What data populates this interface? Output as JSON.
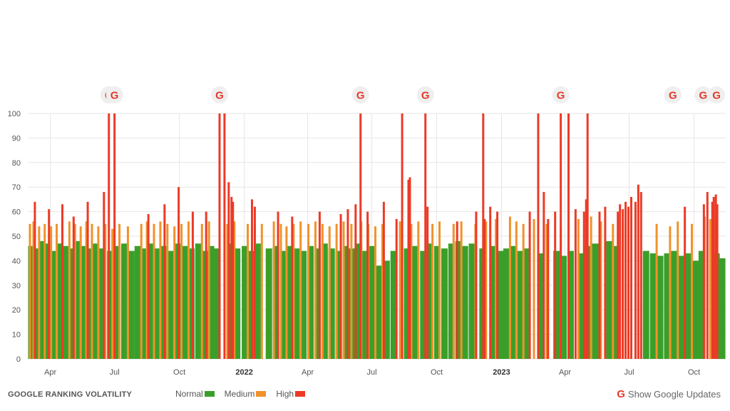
{
  "colors": {
    "normal": "#3a9f2a",
    "medium": "#f0922a",
    "high": "#ec3a26",
    "grid": "#e6e6e6"
  },
  "legend": {
    "title": "GOOGLE RANKING VOLATILITY",
    "normal": "Normal",
    "medium": "Medium",
    "high": "High"
  },
  "toggle": {
    "label": "Show Google Updates",
    "icon": "google-g-icon"
  },
  "chart_data": {
    "type": "bar",
    "title": "",
    "xlabel": "",
    "ylabel": "",
    "ylim": [
      0,
      100
    ],
    "yticks": [
      0,
      10,
      20,
      30,
      40,
      50,
      60,
      70,
      80,
      90,
      100
    ],
    "xlim": [
      "2021-03-01",
      "2023-11-15"
    ],
    "xticks": [
      {
        "date": "2021-04-01",
        "label": "Apr",
        "bold": false
      },
      {
        "date": "2021-07-01",
        "label": "Jul",
        "bold": false
      },
      {
        "date": "2021-10-01",
        "label": "Oct",
        "bold": false
      },
      {
        "date": "2022-01-01",
        "label": "2022",
        "bold": true
      },
      {
        "date": "2022-04-01",
        "label": "Apr",
        "bold": false
      },
      {
        "date": "2022-07-01",
        "label": "Jul",
        "bold": false
      },
      {
        "date": "2022-10-01",
        "label": "Oct",
        "bold": false
      },
      {
        "date": "2023-01-01",
        "label": "2023",
        "bold": true
      },
      {
        "date": "2023-04-01",
        "label": "Apr",
        "bold": false
      },
      {
        "date": "2023-07-01",
        "label": "Jul",
        "bold": false
      },
      {
        "date": "2023-10-01",
        "label": "Oct",
        "bold": false
      }
    ],
    "grid": true,
    "legend_position": "bottom",
    "level_categories": [
      "Normal",
      "Medium",
      "High"
    ],
    "series": [
      {
        "level": "normal",
        "points": [
          [
            "2021-03-05",
            46
          ],
          [
            "2021-03-12",
            45
          ],
          [
            "2021-03-20",
            48
          ],
          [
            "2021-03-28",
            47
          ],
          [
            "2021-04-05",
            44
          ],
          [
            "2021-04-15",
            47
          ],
          [
            "2021-04-22",
            46
          ],
          [
            "2021-05-01",
            45
          ],
          [
            "2021-05-10",
            48
          ],
          [
            "2021-05-18",
            46
          ],
          [
            "2021-05-26",
            45
          ],
          [
            "2021-06-05",
            47
          ],
          [
            "2021-06-14",
            45
          ],
          [
            "2021-06-25",
            44
          ],
          [
            "2021-07-05",
            46
          ],
          [
            "2021-07-15",
            47
          ],
          [
            "2021-07-25",
            44
          ],
          [
            "2021-08-03",
            46
          ],
          [
            "2021-08-12",
            45
          ],
          [
            "2021-08-20",
            47
          ],
          [
            "2021-08-30",
            45
          ],
          [
            "2021-09-08",
            46
          ],
          [
            "2021-09-18",
            44
          ],
          [
            "2021-09-28",
            47
          ],
          [
            "2021-10-08",
            46
          ],
          [
            "2021-10-18",
            45
          ],
          [
            "2021-10-28",
            47
          ],
          [
            "2021-11-06",
            44
          ],
          [
            "2021-11-15",
            46
          ],
          [
            "2021-11-24",
            45
          ],
          [
            "2021-12-12",
            47
          ],
          [
            "2021-12-22",
            45
          ],
          [
            "2022-01-02",
            46
          ],
          [
            "2022-01-10",
            44
          ],
          [
            "2022-01-20",
            47
          ],
          [
            "2022-02-05",
            45
          ],
          [
            "2022-02-15",
            46
          ],
          [
            "2022-02-25",
            44
          ],
          [
            "2022-03-06",
            46
          ],
          [
            "2022-03-16",
            45
          ],
          [
            "2022-03-26",
            44
          ],
          [
            "2022-04-05",
            46
          ],
          [
            "2022-04-15",
            45
          ],
          [
            "2022-04-25",
            47
          ],
          [
            "2022-05-05",
            45
          ],
          [
            "2022-05-15",
            44
          ],
          [
            "2022-05-25",
            46
          ],
          [
            "2022-06-03",
            45
          ],
          [
            "2022-06-13",
            47
          ],
          [
            "2022-06-22",
            44
          ],
          [
            "2022-07-02",
            46
          ],
          [
            "2022-07-12",
            38
          ],
          [
            "2022-07-22",
            40
          ],
          [
            "2022-08-01",
            44
          ],
          [
            "2022-08-20",
            45
          ],
          [
            "2022-09-01",
            46
          ],
          [
            "2022-09-12",
            44
          ],
          [
            "2022-09-22",
            47
          ],
          [
            "2022-10-02",
            46
          ],
          [
            "2022-10-12",
            45
          ],
          [
            "2022-10-22",
            47
          ],
          [
            "2022-11-01",
            48
          ],
          [
            "2022-11-10",
            46
          ],
          [
            "2022-11-20",
            47
          ],
          [
            "2022-12-05",
            45
          ],
          [
            "2022-12-20",
            46
          ],
          [
            "2022-12-30",
            44
          ],
          [
            "2023-01-08",
            45
          ],
          [
            "2023-01-18",
            46
          ],
          [
            "2023-01-28",
            44
          ],
          [
            "2023-02-06",
            45
          ],
          [
            "2023-02-25",
            43
          ],
          [
            "2023-03-20",
            44
          ],
          [
            "2023-03-30",
            42
          ],
          [
            "2023-04-09",
            44
          ],
          [
            "2023-04-25",
            43
          ],
          [
            "2023-05-04",
            46
          ],
          [
            "2023-05-14",
            47
          ],
          [
            "2023-06-03",
            48
          ],
          [
            "2023-06-12",
            46
          ],
          [
            "2023-07-25",
            44
          ],
          [
            "2023-08-04",
            43
          ],
          [
            "2023-08-14",
            42
          ],
          [
            "2023-08-24",
            43
          ],
          [
            "2023-09-03",
            44
          ],
          [
            "2023-09-13",
            42
          ],
          [
            "2023-09-23",
            43
          ],
          [
            "2023-10-03",
            40
          ],
          [
            "2023-10-12",
            44
          ],
          [
            "2023-11-02",
            43
          ],
          [
            "2023-11-10",
            41
          ]
        ]
      },
      {
        "level": "medium",
        "points": [
          [
            "2021-03-03",
            55
          ],
          [
            "2021-03-08",
            56
          ],
          [
            "2021-03-16",
            54
          ],
          [
            "2021-03-24",
            55
          ],
          [
            "2021-04-02",
            54
          ],
          [
            "2021-04-10",
            55
          ],
          [
            "2021-04-28",
            56
          ],
          [
            "2021-05-06",
            55
          ],
          [
            "2021-05-14",
            54
          ],
          [
            "2021-05-22",
            56
          ],
          [
            "2021-05-30",
            55
          ],
          [
            "2021-06-08",
            54
          ],
          [
            "2021-06-18",
            55
          ],
          [
            "2021-06-28",
            53
          ],
          [
            "2021-07-08",
            55
          ],
          [
            "2021-07-20",
            54
          ],
          [
            "2021-08-08",
            55
          ],
          [
            "2021-08-16",
            56
          ],
          [
            "2021-08-26",
            55
          ],
          [
            "2021-09-04",
            56
          ],
          [
            "2021-09-14",
            55
          ],
          [
            "2021-09-24",
            54
          ],
          [
            "2021-10-04",
            55
          ],
          [
            "2021-10-14",
            56
          ],
          [
            "2021-11-02",
            55
          ],
          [
            "2021-11-12",
            56
          ],
          [
            "2021-12-08",
            55
          ],
          [
            "2021-12-18",
            56
          ],
          [
            "2022-01-06",
            55
          ],
          [
            "2022-01-16",
            54
          ],
          [
            "2022-01-26",
            55
          ],
          [
            "2022-02-12",
            56
          ],
          [
            "2022-02-22",
            55
          ],
          [
            "2022-03-02",
            54
          ],
          [
            "2022-03-12",
            55
          ],
          [
            "2022-03-22",
            56
          ],
          [
            "2022-04-02",
            55
          ],
          [
            "2022-04-12",
            56
          ],
          [
            "2022-04-22",
            55
          ],
          [
            "2022-05-02",
            54
          ],
          [
            "2022-05-12",
            55
          ],
          [
            "2022-05-22",
            56
          ],
          [
            "2022-06-02",
            55
          ],
          [
            "2022-06-16",
            56
          ],
          [
            "2022-06-26",
            55
          ],
          [
            "2022-07-06",
            54
          ],
          [
            "2022-07-16",
            55
          ],
          [
            "2022-08-10",
            56
          ],
          [
            "2022-08-26",
            55
          ],
          [
            "2022-09-05",
            56
          ],
          [
            "2022-09-25",
            55
          ],
          [
            "2022-10-05",
            56
          ],
          [
            "2022-10-25",
            55
          ],
          [
            "2022-11-05",
            56
          ],
          [
            "2022-11-25",
            55
          ],
          [
            "2022-12-10",
            56
          ],
          [
            "2022-12-24",
            57
          ],
          [
            "2023-01-13",
            58
          ],
          [
            "2023-01-22",
            56
          ],
          [
            "2023-02-01",
            55
          ],
          [
            "2023-02-16",
            57
          ],
          [
            "2023-03-06",
            55
          ],
          [
            "2023-03-26",
            54
          ],
          [
            "2023-04-20",
            57
          ],
          [
            "2023-05-08",
            58
          ],
          [
            "2023-05-22",
            56
          ],
          [
            "2023-06-08",
            55
          ],
          [
            "2023-06-22",
            56
          ],
          [
            "2023-08-09",
            55
          ],
          [
            "2023-08-28",
            54
          ],
          [
            "2023-09-08",
            56
          ],
          [
            "2023-09-28",
            55
          ],
          [
            "2023-10-16",
            58
          ],
          [
            "2023-10-24",
            57
          ]
        ]
      },
      {
        "level": "high",
        "points": [
          [
            "2021-03-10",
            64
          ],
          [
            "2021-03-30",
            61
          ],
          [
            "2021-04-18",
            63
          ],
          [
            "2021-05-04",
            58
          ],
          [
            "2021-05-24",
            64
          ],
          [
            "2021-06-16",
            68
          ],
          [
            "2021-06-23",
            100
          ],
          [
            "2021-07-01",
            100
          ],
          [
            "2021-08-18",
            59
          ],
          [
            "2021-09-10",
            63
          ],
          [
            "2021-09-30",
            70
          ],
          [
            "2021-10-20",
            60
          ],
          [
            "2021-11-08",
            60
          ],
          [
            "2021-11-27",
            100
          ],
          [
            "2021-12-04",
            100
          ],
          [
            "2021-12-10",
            72
          ],
          [
            "2021-12-14",
            66
          ],
          [
            "2021-12-16",
            64
          ],
          [
            "2022-01-12",
            65
          ],
          [
            "2022-01-16",
            62
          ],
          [
            "2022-02-18",
            60
          ],
          [
            "2022-03-10",
            58
          ],
          [
            "2022-04-18",
            60
          ],
          [
            "2022-05-18",
            59
          ],
          [
            "2022-05-28",
            61
          ],
          [
            "2022-06-08",
            63
          ],
          [
            "2022-06-15",
            100
          ],
          [
            "2022-06-25",
            60
          ],
          [
            "2022-07-18",
            64
          ],
          [
            "2022-08-05",
            57
          ],
          [
            "2022-08-13",
            100
          ],
          [
            "2022-08-22",
            73
          ],
          [
            "2022-08-24",
            74
          ],
          [
            "2022-09-15",
            100
          ],
          [
            "2022-09-18",
            62
          ],
          [
            "2022-10-30",
            56
          ],
          [
            "2022-11-26",
            60
          ],
          [
            "2022-12-06",
            100
          ],
          [
            "2022-12-08",
            57
          ],
          [
            "2022-12-16",
            62
          ],
          [
            "2022-12-26",
            60
          ],
          [
            "2023-02-10",
            60
          ],
          [
            "2023-02-22",
            100
          ],
          [
            "2023-03-02",
            68
          ],
          [
            "2023-03-08",
            57
          ],
          [
            "2023-03-18",
            60
          ],
          [
            "2023-03-26",
            100
          ],
          [
            "2023-04-06",
            100
          ],
          [
            "2023-04-16",
            61
          ],
          [
            "2023-04-28",
            60
          ],
          [
            "2023-05-01",
            65
          ],
          [
            "2023-05-03",
            100
          ],
          [
            "2023-05-20",
            60
          ],
          [
            "2023-05-28",
            62
          ],
          [
            "2023-06-15",
            60
          ],
          [
            "2023-06-18",
            63
          ],
          [
            "2023-06-22",
            61
          ],
          [
            "2023-06-26",
            64
          ],
          [
            "2023-06-30",
            62
          ],
          [
            "2023-07-04",
            66
          ],
          [
            "2023-07-10",
            64
          ],
          [
            "2023-07-14",
            71
          ],
          [
            "2023-07-18",
            68
          ],
          [
            "2023-09-18",
            62
          ],
          [
            "2023-10-15",
            63
          ],
          [
            "2023-10-20",
            68
          ],
          [
            "2023-10-27",
            64
          ],
          [
            "2023-10-29",
            66
          ],
          [
            "2023-11-01",
            67
          ],
          [
            "2023-11-03",
            63
          ]
        ]
      }
    ],
    "google_update_markers": [
      "2021-06-23",
      "2021-07-01",
      "2021-11-27",
      "2022-06-15",
      "2022-09-15",
      "2023-03-26",
      "2023-09-01",
      "2023-10-14",
      "2023-11-02"
    ]
  }
}
